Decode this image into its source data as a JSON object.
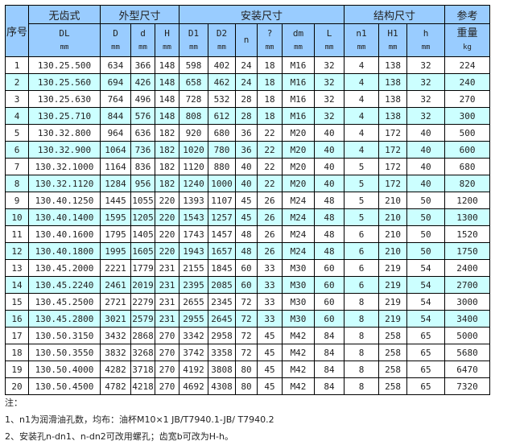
{
  "header": {
    "seq": "序号",
    "dl_group": "无齿式",
    "groups": [
      "外型尺寸",
      "安装尺寸",
      "结构尺寸"
    ],
    "weight_group": "参考",
    "columns": [
      {
        "label": "DL",
        "unit": "mm"
      },
      {
        "label": "D",
        "unit": "mm"
      },
      {
        "label": "d",
        "unit": "mm"
      },
      {
        "label": "H",
        "unit": "mm"
      },
      {
        "label": "D1",
        "unit": "mm"
      },
      {
        "label": "D2",
        "unit": "mm"
      },
      {
        "label": "n",
        "unit": ""
      },
      {
        "label": "?",
        "unit": "mm"
      },
      {
        "label": "dm",
        "unit": "mm"
      },
      {
        "label": "L",
        "unit": "mm"
      },
      {
        "label": "n1",
        "unit": "mm"
      },
      {
        "label": "H1",
        "unit": "mm"
      },
      {
        "label": "h",
        "unit": "mm"
      },
      {
        "label": "重量",
        "unit": "kg"
      }
    ]
  },
  "rows": [
    [
      "1",
      "130.25.500",
      "634",
      "366",
      "148",
      "598",
      "402",
      "24",
      "18",
      "M16",
      "32",
      "4",
      "138",
      "32",
      "224"
    ],
    [
      "2",
      "130.25.560",
      "694",
      "426",
      "148",
      "658",
      "462",
      "24",
      "18",
      "M16",
      "32",
      "4",
      "138",
      "32",
      "240"
    ],
    [
      "3",
      "130.25.630",
      "764",
      "496",
      "148",
      "728",
      "532",
      "28",
      "18",
      "M16",
      "32",
      "4",
      "138",
      "32",
      "270"
    ],
    [
      "4",
      "130.25.710",
      "844",
      "576",
      "148",
      "808",
      "612",
      "28",
      "18",
      "M16",
      "32",
      "4",
      "138",
      "32",
      "300"
    ],
    [
      "5",
      "130.32.800",
      "964",
      "636",
      "182",
      "920",
      "680",
      "36",
      "22",
      "M20",
      "40",
      "4",
      "172",
      "40",
      "500"
    ],
    [
      "6",
      "130.32.900",
      "1064",
      "736",
      "182",
      "1020",
      "780",
      "36",
      "22",
      "M20",
      "40",
      "4",
      "172",
      "40",
      "600"
    ],
    [
      "7",
      "130.32.1000",
      "1164",
      "836",
      "182",
      "1120",
      "880",
      "40",
      "22",
      "M20",
      "40",
      "5",
      "172",
      "40",
      "680"
    ],
    [
      "8",
      "130.32.1120",
      "1284",
      "956",
      "182",
      "1240",
      "1000",
      "40",
      "22",
      "M20",
      "40",
      "5",
      "172",
      "40",
      "820"
    ],
    [
      "9",
      "130.40.1250",
      "1445",
      "1055",
      "220",
      "1393",
      "1107",
      "45",
      "26",
      "M24",
      "48",
      "5",
      "210",
      "50",
      "1200"
    ],
    [
      "10",
      "130.40.1400",
      "1595",
      "1205",
      "220",
      "1543",
      "1257",
      "45",
      "26",
      "M24",
      "48",
      "5",
      "210",
      "50",
      "1300"
    ],
    [
      "11",
      "130.40.1600",
      "1795",
      "1405",
      "220",
      "1743",
      "1457",
      "48",
      "26",
      "M24",
      "48",
      "6",
      "210",
      "50",
      "1520"
    ],
    [
      "12",
      "130.40.1800",
      "1995",
      "1605",
      "220",
      "1943",
      "1657",
      "48",
      "26",
      "M24",
      "48",
      "6",
      "210",
      "50",
      "1750"
    ],
    [
      "13",
      "130.45.2000",
      "2221",
      "1779",
      "231",
      "2155",
      "1845",
      "60",
      "33",
      "M30",
      "60",
      "6",
      "219",
      "54",
      "2400"
    ],
    [
      "14",
      "130.45.2240",
      "2461",
      "2019",
      "231",
      "2395",
      "2085",
      "60",
      "33",
      "M30",
      "60",
      "6",
      "219",
      "54",
      "2700"
    ],
    [
      "15",
      "130.45.2500",
      "2721",
      "2279",
      "231",
      "2655",
      "2345",
      "72",
      "33",
      "M30",
      "60",
      "8",
      "219",
      "54",
      "3000"
    ],
    [
      "16",
      "130.45.2800",
      "3021",
      "2579",
      "231",
      "2955",
      "2645",
      "72",
      "33",
      "M30",
      "60",
      "8",
      "219",
      "54",
      "3400"
    ],
    [
      "17",
      "130.50.3150",
      "3432",
      "2868",
      "270",
      "3342",
      "2958",
      "72",
      "45",
      "M42",
      "84",
      "8",
      "258",
      "65",
      "5000"
    ],
    [
      "18",
      "130.50.3550",
      "3832",
      "3268",
      "270",
      "3742",
      "3358",
      "72",
      "45",
      "M42",
      "84",
      "8",
      "258",
      "65",
      "5680"
    ],
    [
      "19",
      "130.50.4000",
      "4282",
      "3718",
      "270",
      "4192",
      "3808",
      "80",
      "45",
      "M42",
      "84",
      "8",
      "258",
      "65",
      "6470"
    ],
    [
      "20",
      "130.50.4500",
      "4782",
      "4218",
      "270",
      "4692",
      "4308",
      "80",
      "45",
      "M42",
      "84",
      "8",
      "258",
      "65",
      "7320"
    ]
  ],
  "notes": {
    "title": "注：",
    "items": [
      "1、n1为润滑油孔数，均布：油杯M10×1 JB/T7940.1-JB/ T7940.2",
      "2、安装孔n-dn1、n-dn2可改用螺孔；齿宽b可改为H-h。"
    ]
  },
  "colors": {
    "header_bg": "#99ccff",
    "alt_row_bg": "#ccffff",
    "border": "#000000"
  }
}
